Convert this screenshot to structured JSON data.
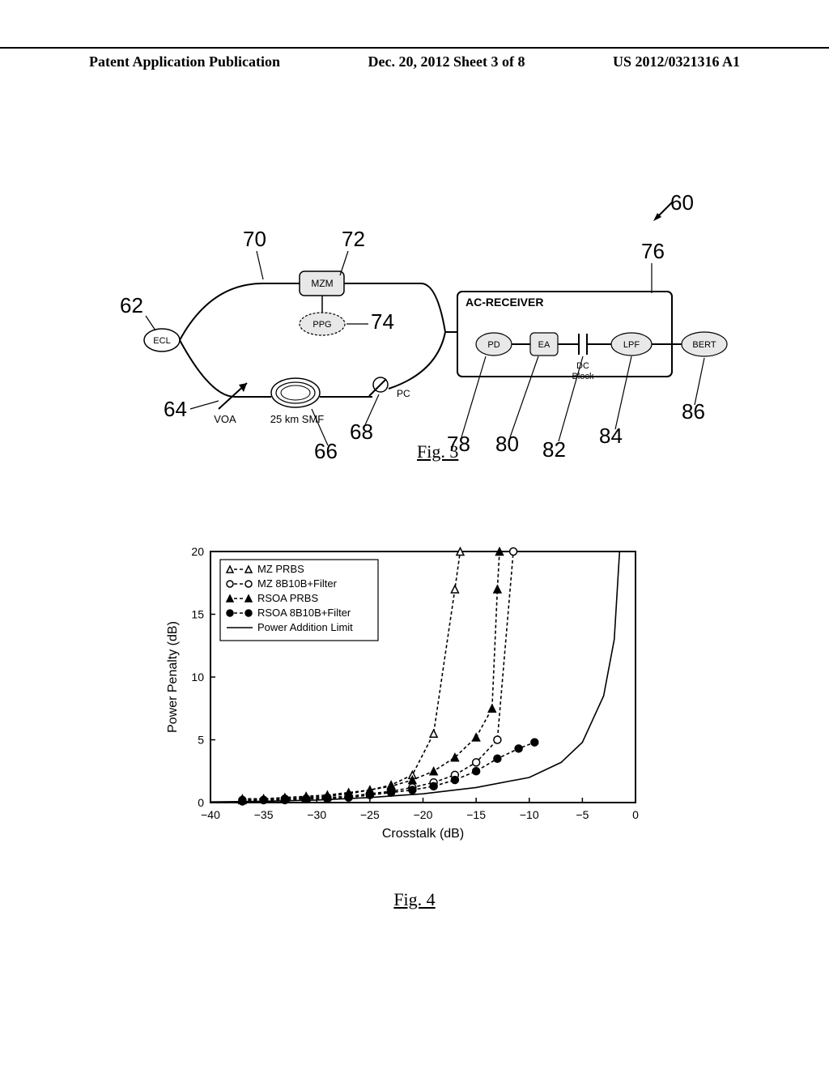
{
  "header": {
    "left": "Patent Application Publication",
    "center": "Dec. 20, 2012  Sheet 3 of 8",
    "right": "US 2012/0321316 A1"
  },
  "fig3": {
    "caption": "Fig. 3",
    "ref_arrow_label": "60",
    "blocks": {
      "mzm": "MZM",
      "ppg": "PPG",
      "ecl": "ECL",
      "voa": "VOA",
      "fiber": "25 km SMF",
      "pc": "PC",
      "ac_receiver": "AC-RECEIVER",
      "pd": "PD",
      "ea": "EA",
      "dc_block": "DC\nBlock",
      "lpf": "LPF",
      "bert": "BERT"
    },
    "callouts": {
      "62": "62",
      "64": "64",
      "66": "66",
      "68": "68",
      "70": "70",
      "72": "72",
      "74": "74",
      "76": "76",
      "78": "78",
      "80": "80",
      "82": "82",
      "84": "84",
      "86": "86"
    }
  },
  "fig4": {
    "caption": "Fig. 4",
    "xlabel": "Crosstalk (dB)",
    "ylabel": "Power Penalty (dB)",
    "xlim": [
      -40,
      0
    ],
    "ylim": [
      0,
      20
    ],
    "xticks": [
      -40,
      -35,
      -30,
      -25,
      -20,
      -15,
      -10,
      -5,
      0
    ],
    "yticks": [
      0,
      5,
      10,
      15,
      20
    ],
    "label_fontsize": 16,
    "tick_fontsize": 14,
    "background_color": "#ffffff",
    "axis_color": "#000000",
    "legend": {
      "position": "top-left",
      "items": [
        {
          "label": "MZ PRBS",
          "marker": "triangle-open",
          "color": "#000000",
          "dash": "4,3"
        },
        {
          "label": "MZ 8B10B+Filter",
          "marker": "circle-open",
          "color": "#000000",
          "dash": "4,3"
        },
        {
          "label": "RSOA PRBS",
          "marker": "triangle-filled",
          "color": "#000000",
          "dash": "4,3"
        },
        {
          "label": "RSOA 8B10B+Filter",
          "marker": "circle-filled",
          "color": "#000000",
          "dash": "4,3"
        },
        {
          "label": "Power Addition Limit",
          "marker": "none",
          "color": "#000000",
          "dash": "none"
        }
      ]
    },
    "series": [
      {
        "name": "MZ PRBS",
        "marker": "triangle-open",
        "color": "#000000",
        "dash": "4,3",
        "points": [
          [
            -37,
            0.3
          ],
          [
            -35,
            0.3
          ],
          [
            -33,
            0.4
          ],
          [
            -31,
            0.5
          ],
          [
            -29,
            0.6
          ],
          [
            -27,
            0.8
          ],
          [
            -25,
            1.0
          ],
          [
            -23,
            1.4
          ],
          [
            -21,
            2.2
          ],
          [
            -19,
            5.5
          ],
          [
            -17,
            17
          ],
          [
            -16.5,
            20
          ]
        ]
      },
      {
        "name": "MZ 8B10B+Filter",
        "marker": "circle-open",
        "color": "#000000",
        "dash": "4,3",
        "points": [
          [
            -37,
            0.2
          ],
          [
            -35,
            0.2
          ],
          [
            -33,
            0.3
          ],
          [
            -31,
            0.3
          ],
          [
            -29,
            0.4
          ],
          [
            -27,
            0.5
          ],
          [
            -25,
            0.7
          ],
          [
            -23,
            0.9
          ],
          [
            -21,
            1.2
          ],
          [
            -19,
            1.6
          ],
          [
            -17,
            2.2
          ],
          [
            -15,
            3.2
          ],
          [
            -13,
            5.0
          ],
          [
            -11.5,
            20
          ]
        ]
      },
      {
        "name": "RSOA PRBS",
        "marker": "triangle-filled",
        "color": "#000000",
        "dash": "4,3",
        "points": [
          [
            -37,
            0.2
          ],
          [
            -35,
            0.3
          ],
          [
            -33,
            0.3
          ],
          [
            -31,
            0.4
          ],
          [
            -29,
            0.5
          ],
          [
            -27,
            0.7
          ],
          [
            -25,
            1.0
          ],
          [
            -23,
            1.3
          ],
          [
            -21,
            1.8
          ],
          [
            -19,
            2.5
          ],
          [
            -17,
            3.6
          ],
          [
            -15,
            5.2
          ],
          [
            -13.5,
            7.5
          ],
          [
            -13,
            17
          ],
          [
            -12.8,
            20
          ]
        ]
      },
      {
        "name": "RSOA 8B10B+Filter",
        "marker": "circle-filled",
        "color": "#000000",
        "dash": "4,3",
        "points": [
          [
            -37,
            0.1
          ],
          [
            -35,
            0.2
          ],
          [
            -33,
            0.2
          ],
          [
            -31,
            0.3
          ],
          [
            -29,
            0.3
          ],
          [
            -27,
            0.4
          ],
          [
            -25,
            0.6
          ],
          [
            -23,
            0.8
          ],
          [
            -21,
            1.0
          ],
          [
            -19,
            1.3
          ],
          [
            -17,
            1.8
          ],
          [
            -15,
            2.5
          ],
          [
            -13,
            3.5
          ],
          [
            -11,
            4.3
          ],
          [
            -9.5,
            4.8
          ]
        ]
      },
      {
        "name": "Power Addition Limit",
        "marker": "none",
        "color": "#000000",
        "dash": "none",
        "points": [
          [
            -40,
            0.05
          ],
          [
            -35,
            0.1
          ],
          [
            -30,
            0.2
          ],
          [
            -25,
            0.4
          ],
          [
            -20,
            0.7
          ],
          [
            -15,
            1.2
          ],
          [
            -10,
            2.0
          ],
          [
            -7,
            3.2
          ],
          [
            -5,
            4.8
          ],
          [
            -3,
            8.5
          ],
          [
            -2,
            13
          ],
          [
            -1.5,
            20
          ]
        ]
      }
    ]
  }
}
